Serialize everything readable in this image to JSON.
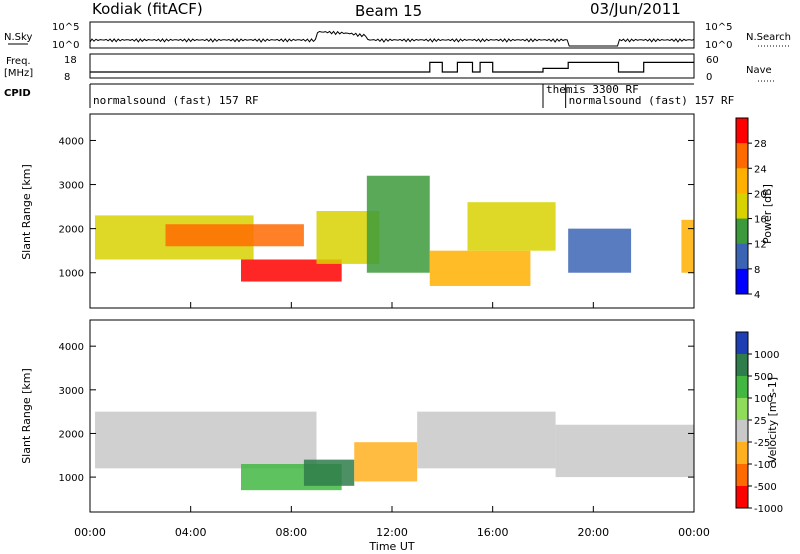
{
  "header": {
    "station": "Kodiak (fitACF)",
    "beam": "Beam 15",
    "date": "03/Jun/2011"
  },
  "top_panels": {
    "nsky_label": "N.Sky",
    "nsky_ticks": [
      "10^5",
      "10^0"
    ],
    "nsearch_label": "N.Search",
    "nsearch_ticks": [
      "10^5",
      "10^0"
    ],
    "freq_label": "Freq.",
    "freq_unit": "[MHz]",
    "freq_ticks": [
      "18",
      "8"
    ],
    "nave_label": "Nave",
    "nave_ticks": [
      "60",
      "0"
    ],
    "cpid_label": "CPID",
    "cpid_segments": [
      {
        "name": "normalsound (fast) 157 RF",
        "start_hour": 0.0,
        "end_hour": 18.0
      },
      {
        "name": "themis 3300 RF",
        "start_hour": 18.0,
        "end_hour": 18.9
      },
      {
        "name": "normalsound (fast) 157 RF",
        "start_hour": 18.9,
        "end_hour": 24.0
      }
    ],
    "freq_steps": [
      {
        "start_hour": 0.0,
        "end_hour": 13.5,
        "mhz": 10.5
      },
      {
        "start_hour": 13.5,
        "end_hour": 14.0,
        "mhz": 14.5
      },
      {
        "start_hour": 14.0,
        "end_hour": 14.6,
        "mhz": 10.5
      },
      {
        "start_hour": 14.6,
        "end_hour": 15.2,
        "mhz": 14.5
      },
      {
        "start_hour": 15.2,
        "end_hour": 15.5,
        "mhz": 10.5
      },
      {
        "start_hour": 15.5,
        "end_hour": 16.0,
        "mhz": 14.5
      },
      {
        "start_hour": 16.0,
        "end_hour": 18.0,
        "mhz": 10.5
      },
      {
        "start_hour": 18.0,
        "end_hour": 19.0,
        "mhz": 12.0
      },
      {
        "start_hour": 19.0,
        "end_hour": 21.0,
        "mhz": 14.5
      },
      {
        "start_hour": 21.0,
        "end_hour": 22.0,
        "mhz": 10.5
      },
      {
        "start_hour": 22.0,
        "end_hour": 24.0,
        "mhz": 14.5
      }
    ]
  },
  "chart_data": [
    {
      "type": "heatmap",
      "name": "power",
      "ylabel": "Slant Range [km]",
      "y_ticks": [
        1000,
        2000,
        3000,
        4000
      ],
      "ylim": [
        200,
        4600
      ],
      "xlim": [
        0,
        24
      ],
      "colorbar_label": "Power [dB]",
      "colorbar_ticks": [
        "28",
        "24",
        "20",
        "16",
        "12",
        "8",
        "4"
      ],
      "colorbar_colors": [
        "#ff0000",
        "#ff6a00",
        "#ffb000",
        "#d7d200",
        "#3c9a3c",
        "#3c64b4",
        "#0000ff"
      ],
      "echo_regions": [
        {
          "start_hour": 0.2,
          "end_hour": 6.5,
          "range_km": [
            1300,
            2300
          ],
          "db": 14
        },
        {
          "start_hour": 3.0,
          "end_hour": 8.5,
          "range_km": [
            1600,
            2100
          ],
          "db": 22
        },
        {
          "start_hour": 6.0,
          "end_hour": 10.0,
          "range_km": [
            800,
            1300
          ],
          "db": 27
        },
        {
          "start_hour": 9.0,
          "end_hour": 11.5,
          "range_km": [
            1200,
            2400
          ],
          "db": 16
        },
        {
          "start_hour": 11.0,
          "end_hour": 13.5,
          "range_km": [
            1000,
            3200
          ],
          "db": 10
        },
        {
          "start_hour": 13.5,
          "end_hour": 17.5,
          "range_km": [
            700,
            1500
          ],
          "db": 18
        },
        {
          "start_hour": 15.0,
          "end_hour": 18.5,
          "range_km": [
            1500,
            2600
          ],
          "db": 14
        },
        {
          "start_hour": 19.0,
          "end_hour": 21.5,
          "range_km": [
            1000,
            2000
          ],
          "db": 8
        },
        {
          "start_hour": 23.5,
          "end_hour": 24.0,
          "range_km": [
            1000,
            2200
          ],
          "db": 18
        }
      ]
    },
    {
      "type": "heatmap",
      "name": "velocity",
      "ylabel": "Slant Range [km]",
      "y_ticks": [
        1000,
        2000,
        3000,
        4000
      ],
      "ylim": [
        200,
        4600
      ],
      "xlim": [
        0,
        24
      ],
      "colorbar_label": "Velocity [m s-1]",
      "colorbar_ticks": [
        "1000",
        "500",
        "100",
        "25",
        "-25",
        "-100",
        "-500",
        "-1000"
      ],
      "colorbar_colors": [
        "#1e3fb4",
        "#2e7d4a",
        "#42b842",
        "#8edc5a",
        "#c8c8c8",
        "#ffb020",
        "#ff6a00",
        "#ff0000"
      ],
      "echo_regions": [
        {
          "start_hour": 0.2,
          "end_hour": 9.0,
          "range_km": [
            1200,
            2500
          ],
          "ms": 0
        },
        {
          "start_hour": 6.0,
          "end_hour": 10.0,
          "range_km": [
            700,
            1300
          ],
          "ms": 120
        },
        {
          "start_hour": 8.5,
          "end_hour": 10.5,
          "range_km": [
            800,
            1400
          ],
          "ms": 400
        },
        {
          "start_hour": 10.5,
          "end_hour": 13.0,
          "range_km": [
            900,
            1800
          ],
          "ms": -150
        },
        {
          "start_hour": 13.0,
          "end_hour": 18.5,
          "range_km": [
            1200,
            2500
          ],
          "ms": 0
        },
        {
          "start_hour": 18.5,
          "end_hour": 24.0,
          "range_km": [
            1000,
            2200
          ],
          "ms": 0
        }
      ]
    }
  ],
  "x_axis": {
    "label": "Time UT",
    "ticks": [
      "00:00",
      "04:00",
      "08:00",
      "12:00",
      "16:00",
      "20:00",
      "00:00"
    ]
  }
}
